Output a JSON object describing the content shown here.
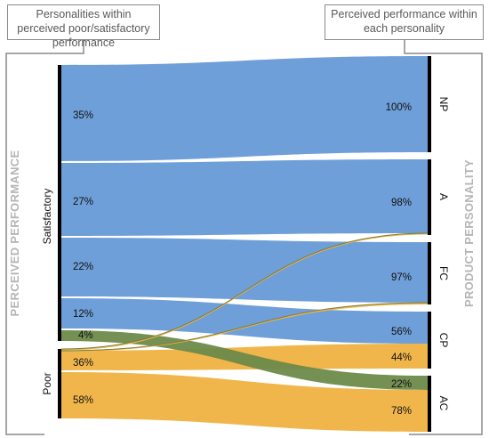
{
  "left_header": "Personalities within perceived poor/satisfactory performance",
  "right_header": "Perceived performance within each personality",
  "left_axis_title": "PERCEIVED PERFORMANCE",
  "right_axis_title": "PRODUCT PERSONALITY",
  "colors": {
    "satisfactory": "#6f9fd8",
    "poor": "#f0b64b",
    "bar": "#000000"
  },
  "chart_data": {
    "type": "sankey",
    "sources": [
      "Satisfactory",
      "Poor"
    ],
    "targets": [
      "NP",
      "A",
      "FC",
      "CP",
      "AC"
    ],
    "flows": [
      {
        "source": "Satisfactory",
        "target": "NP",
        "share_of_source": "35%",
        "share_of_target": "100%"
      },
      {
        "source": "Satisfactory",
        "target": "A",
        "share_of_source": "27%",
        "share_of_target": "98%"
      },
      {
        "source": "Satisfactory",
        "target": "FC",
        "share_of_source": "22%",
        "share_of_target": "97%"
      },
      {
        "source": "Satisfactory",
        "target": "CP",
        "share_of_source": "12%",
        "share_of_target": "56%"
      },
      {
        "source": "Satisfactory",
        "target": "AC",
        "share_of_source": "4%",
        "share_of_target": "22%"
      },
      {
        "source": "Poor",
        "target": "A",
        "share_of_source": "",
        "share_of_target": ""
      },
      {
        "source": "Poor",
        "target": "FC",
        "share_of_source": "",
        "share_of_target": ""
      },
      {
        "source": "Poor",
        "target": "CP",
        "share_of_source": "36%",
        "share_of_target": "44%"
      },
      {
        "source": "Poor",
        "target": "AC",
        "share_of_source": "58%",
        "share_of_target": "78%"
      }
    ]
  }
}
